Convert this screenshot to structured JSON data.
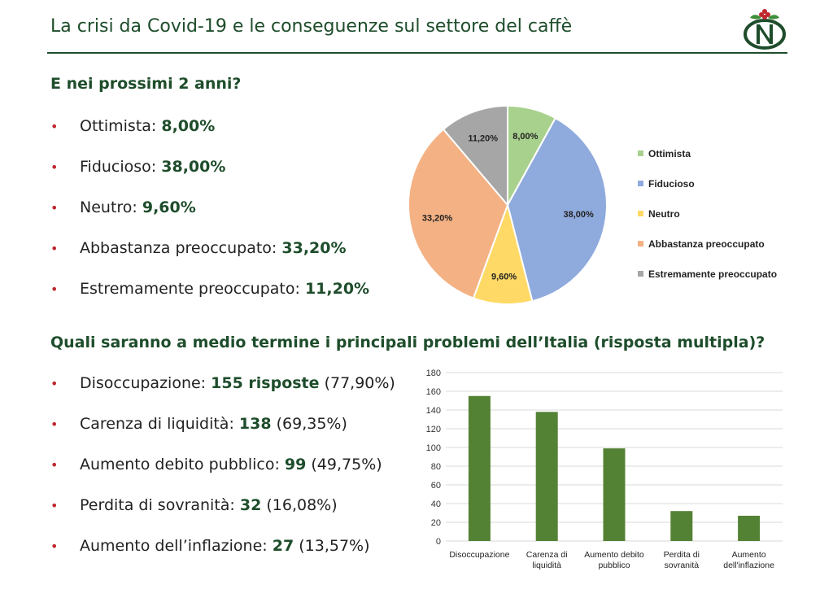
{
  "header": {
    "title": "La crisi da Covid-19 e le conseguenze sul settore del caffè"
  },
  "colors": {
    "brand_green": "#1e4d2b",
    "bullet_red": "#c0282e",
    "bar_green": "#548235"
  },
  "section1": {
    "title": "E nei prossimi 2 anni?",
    "items": [
      {
        "label": "Ottimista: ",
        "value": "8,00%"
      },
      {
        "label": "Fiducioso: ",
        "value": "38,00%"
      },
      {
        "label": "Neutro: ",
        "value": "9,60%"
      },
      {
        "label": "Abbastanza preoccupato: ",
        "value": "33,20%"
      },
      {
        "label": "Estremamente preoccupato: ",
        "value": "11,20%"
      }
    ]
  },
  "section2": {
    "title": "Quali saranno a medio termine i principali problemi dell’Italia (risposta multipla)?",
    "items": [
      {
        "label": "Disoccupazione: ",
        "value": "155 risposte",
        "extra": " (77,90%)"
      },
      {
        "label": "Carenza di liquidità: ",
        "value": "138",
        "extra": " (69,35%)"
      },
      {
        "label": "Aumento debito pubblico: ",
        "value": "99",
        "extra": " (49,75%)"
      },
      {
        "label": "Perdita di sovranità: ",
        "value": "32",
        "extra": " (16,08%)"
      },
      {
        "label": "Aumento dell’inflazione: ",
        "value": "27",
        "extra": " (13,57%)"
      }
    ]
  },
  "bullet_glyph": "•",
  "chart_data": [
    {
      "type": "pie",
      "title": "",
      "categories": [
        "Ottimista",
        "Fiducioso",
        "Neutro",
        "Abbastanza preoccupato",
        "Estremamente preoccupato"
      ],
      "values": [
        8.0,
        38.0,
        9.6,
        33.2,
        11.2
      ],
      "labels": [
        "8,00%",
        "38,00%",
        "9,60%",
        "33,20%",
        "11,20%"
      ],
      "colors": [
        "#a9d18e",
        "#8faadc",
        "#ffd966",
        "#f4b183",
        "#a6a6a6"
      ],
      "legend": "right"
    },
    {
      "type": "bar",
      "title": "",
      "categories": [
        "Disoccupazione",
        "Carenza di liquidità",
        "Aumento debito pubblico",
        "Perdita di sovranità",
        "Aumento dell'inflazione"
      ],
      "category_lines": [
        [
          "Disoccupazione"
        ],
        [
          "Carenza di",
          "liquidità"
        ],
        [
          "Aumento debito",
          "pubblico"
        ],
        [
          "Perdita di",
          "sovranità"
        ],
        [
          "Aumento",
          "dell'inflazione"
        ]
      ],
      "values": [
        155,
        138,
        99,
        32,
        27
      ],
      "ylim": [
        0,
        180
      ],
      "yticks": [
        0,
        20,
        40,
        60,
        80,
        100,
        120,
        140,
        160,
        180
      ],
      "grid": true,
      "color": "#548235"
    }
  ]
}
